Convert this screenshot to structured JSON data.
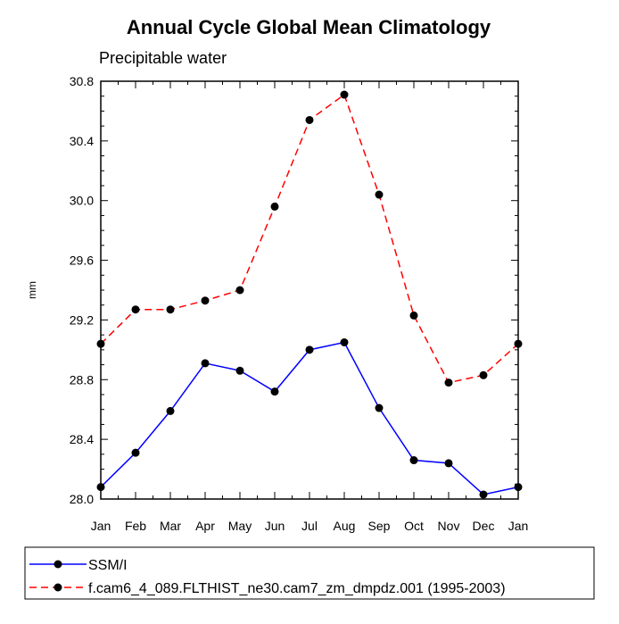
{
  "chart_data": {
    "type": "line",
    "title": "Annual Cycle Global Mean Climatology",
    "subtitle": "Precipitable water",
    "xlabel": "",
    "ylabel": "mm",
    "ylim": [
      28.0,
      30.8
    ],
    "yticks": [
      "28.0",
      "28.4",
      "28.8",
      "29.2",
      "29.6",
      "30.0",
      "30.4",
      "30.8"
    ],
    "categories": [
      "Jan",
      "Feb",
      "Mar",
      "Apr",
      "May",
      "Jun",
      "Jul",
      "Aug",
      "Sep",
      "Oct",
      "Nov",
      "Dec",
      "Jan"
    ],
    "grid": false,
    "legend_position": "bottom",
    "series": [
      {
        "name": "SSM/I",
        "color": "#0000ff",
        "style": "solid",
        "marker": "filled-circle",
        "values": [
          28.08,
          28.31,
          28.59,
          28.91,
          28.86,
          28.72,
          29.0,
          29.05,
          28.61,
          28.26,
          28.24,
          28.03,
          28.08
        ]
      },
      {
        "name": "f.cam6_4_089.FLTHIST_ne30.cam7_zm_dmpdz.001 (1995-2003)",
        "color": "#ff0000",
        "style": "dashed",
        "marker": "filled-circle",
        "values": [
          29.04,
          29.27,
          29.27,
          29.33,
          29.4,
          29.96,
          30.54,
          30.71,
          30.04,
          29.23,
          28.78,
          28.83,
          29.04
        ]
      }
    ]
  }
}
